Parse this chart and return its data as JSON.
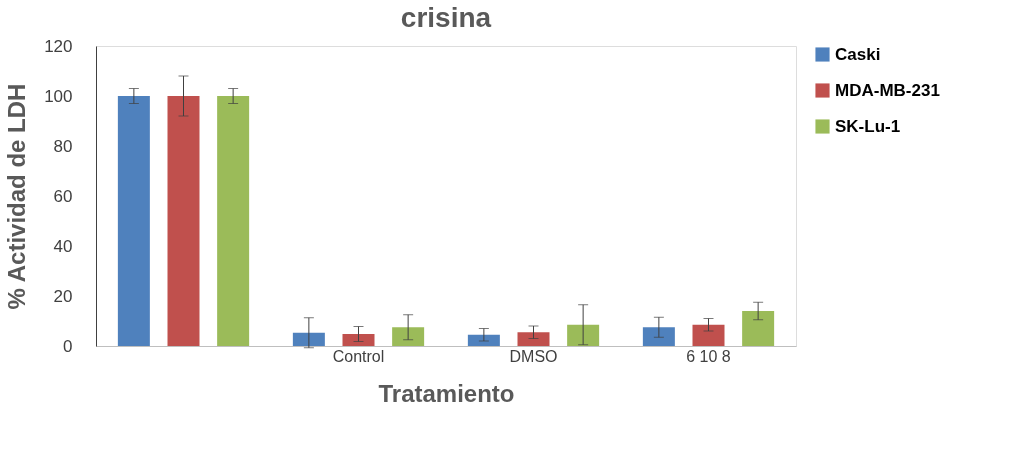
{
  "chart_data": {
    "type": "bar",
    "title": "crisina",
    "xlabel": "Tratamiento",
    "ylabel": "% Actividad de LDH",
    "categories": [
      null,
      "Control",
      "DMSO",
      "6 10 8"
    ],
    "series": [
      {
        "name": "Caski",
        "color": "#4f81bd",
        "values": [
          100,
          5.3,
          4.5,
          7.5
        ],
        "errors": [
          3,
          6,
          2.5,
          4
        ]
      },
      {
        "name": "MDA-MB-231",
        "color": "#c0504d",
        "values": [
          100,
          4.8,
          5.5,
          8.5
        ],
        "errors": [
          8,
          3,
          2.5,
          2.5
        ]
      },
      {
        "name": "SK-Lu-1",
        "color": "#9bbb59",
        "values": [
          100,
          7.5,
          8.5,
          14
        ],
        "errors": [
          3,
          5,
          8,
          3.5
        ]
      }
    ],
    "ylim": [
      0,
      120
    ],
    "yticks": [
      0,
      20,
      40,
      60,
      80,
      100,
      120
    ],
    "grid": false,
    "legend": "right"
  }
}
